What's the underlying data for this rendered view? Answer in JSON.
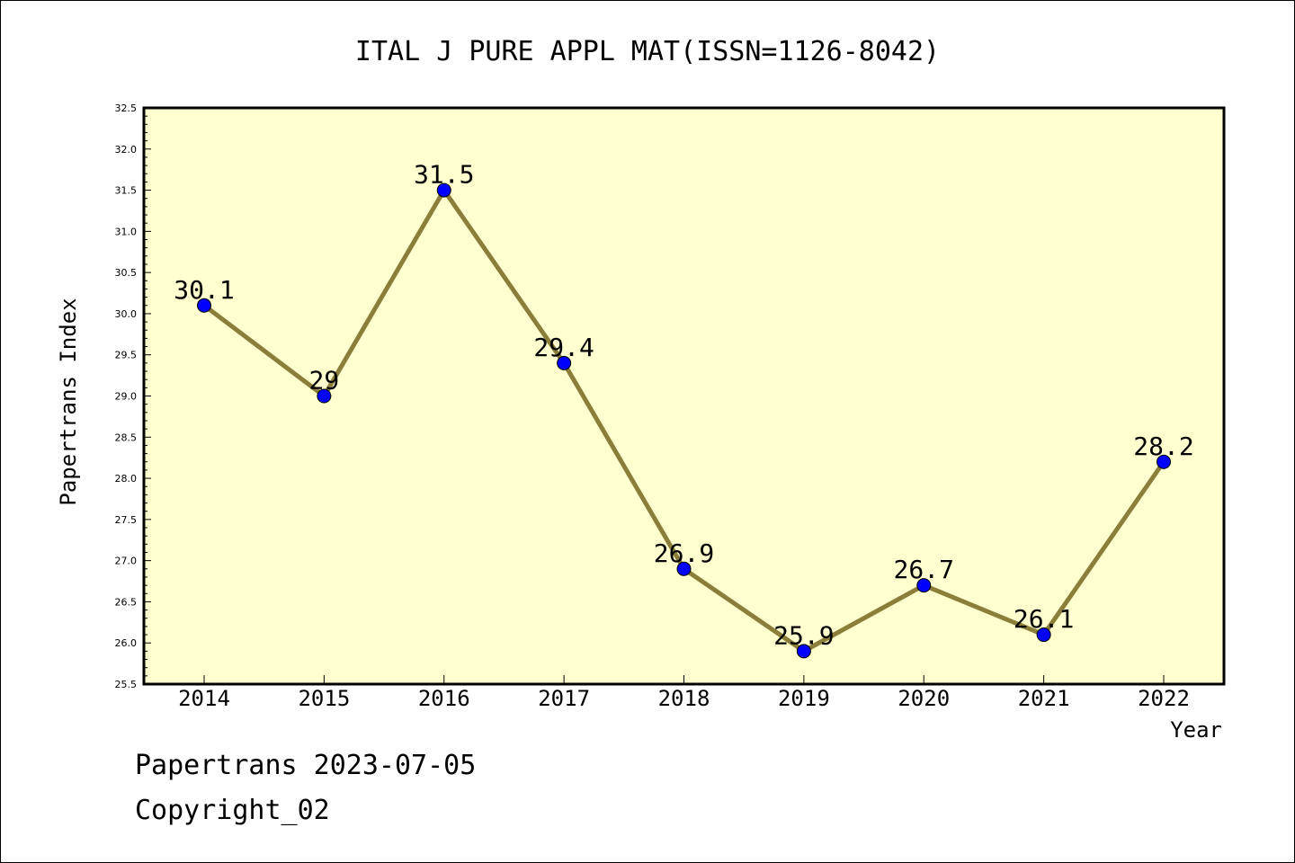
{
  "chart_data": {
    "type": "line",
    "title": "ITAL J PURE APPL MAT(ISSN=1126-8042)",
    "xlabel": "Year",
    "ylabel": "Papertrans Index",
    "categories": [
      "2014",
      "2015",
      "2016",
      "2017",
      "2018",
      "2019",
      "2020",
      "2021",
      "2022"
    ],
    "series": [
      {
        "values": [
          30.1,
          29.0,
          31.5,
          29.4,
          26.9,
          25.9,
          26.7,
          26.1,
          28.2
        ],
        "data_labels": [
          "30.1",
          "29",
          "31.5",
          "29.4",
          "26.9",
          "25.9",
          "26.7",
          "26.1",
          "28.2"
        ]
      }
    ],
    "ylim": [
      25.5,
      32.5
    ],
    "y_ticks": [
      "25.5",
      "26.0",
      "26.5",
      "27.0",
      "27.5",
      "28.0",
      "28.5",
      "29.0",
      "29.5",
      "30.0",
      "30.5",
      "31.0",
      "31.5",
      "32.0",
      "32.5"
    ],
    "grid": false,
    "legend": "none",
    "colors": {
      "plot_background": "#ffffd0",
      "line": "#8b7d3a",
      "marker": "#0000ff"
    }
  },
  "footer": {
    "line1": "Papertrans 2023-07-05",
    "line2": "Copyright_02"
  }
}
